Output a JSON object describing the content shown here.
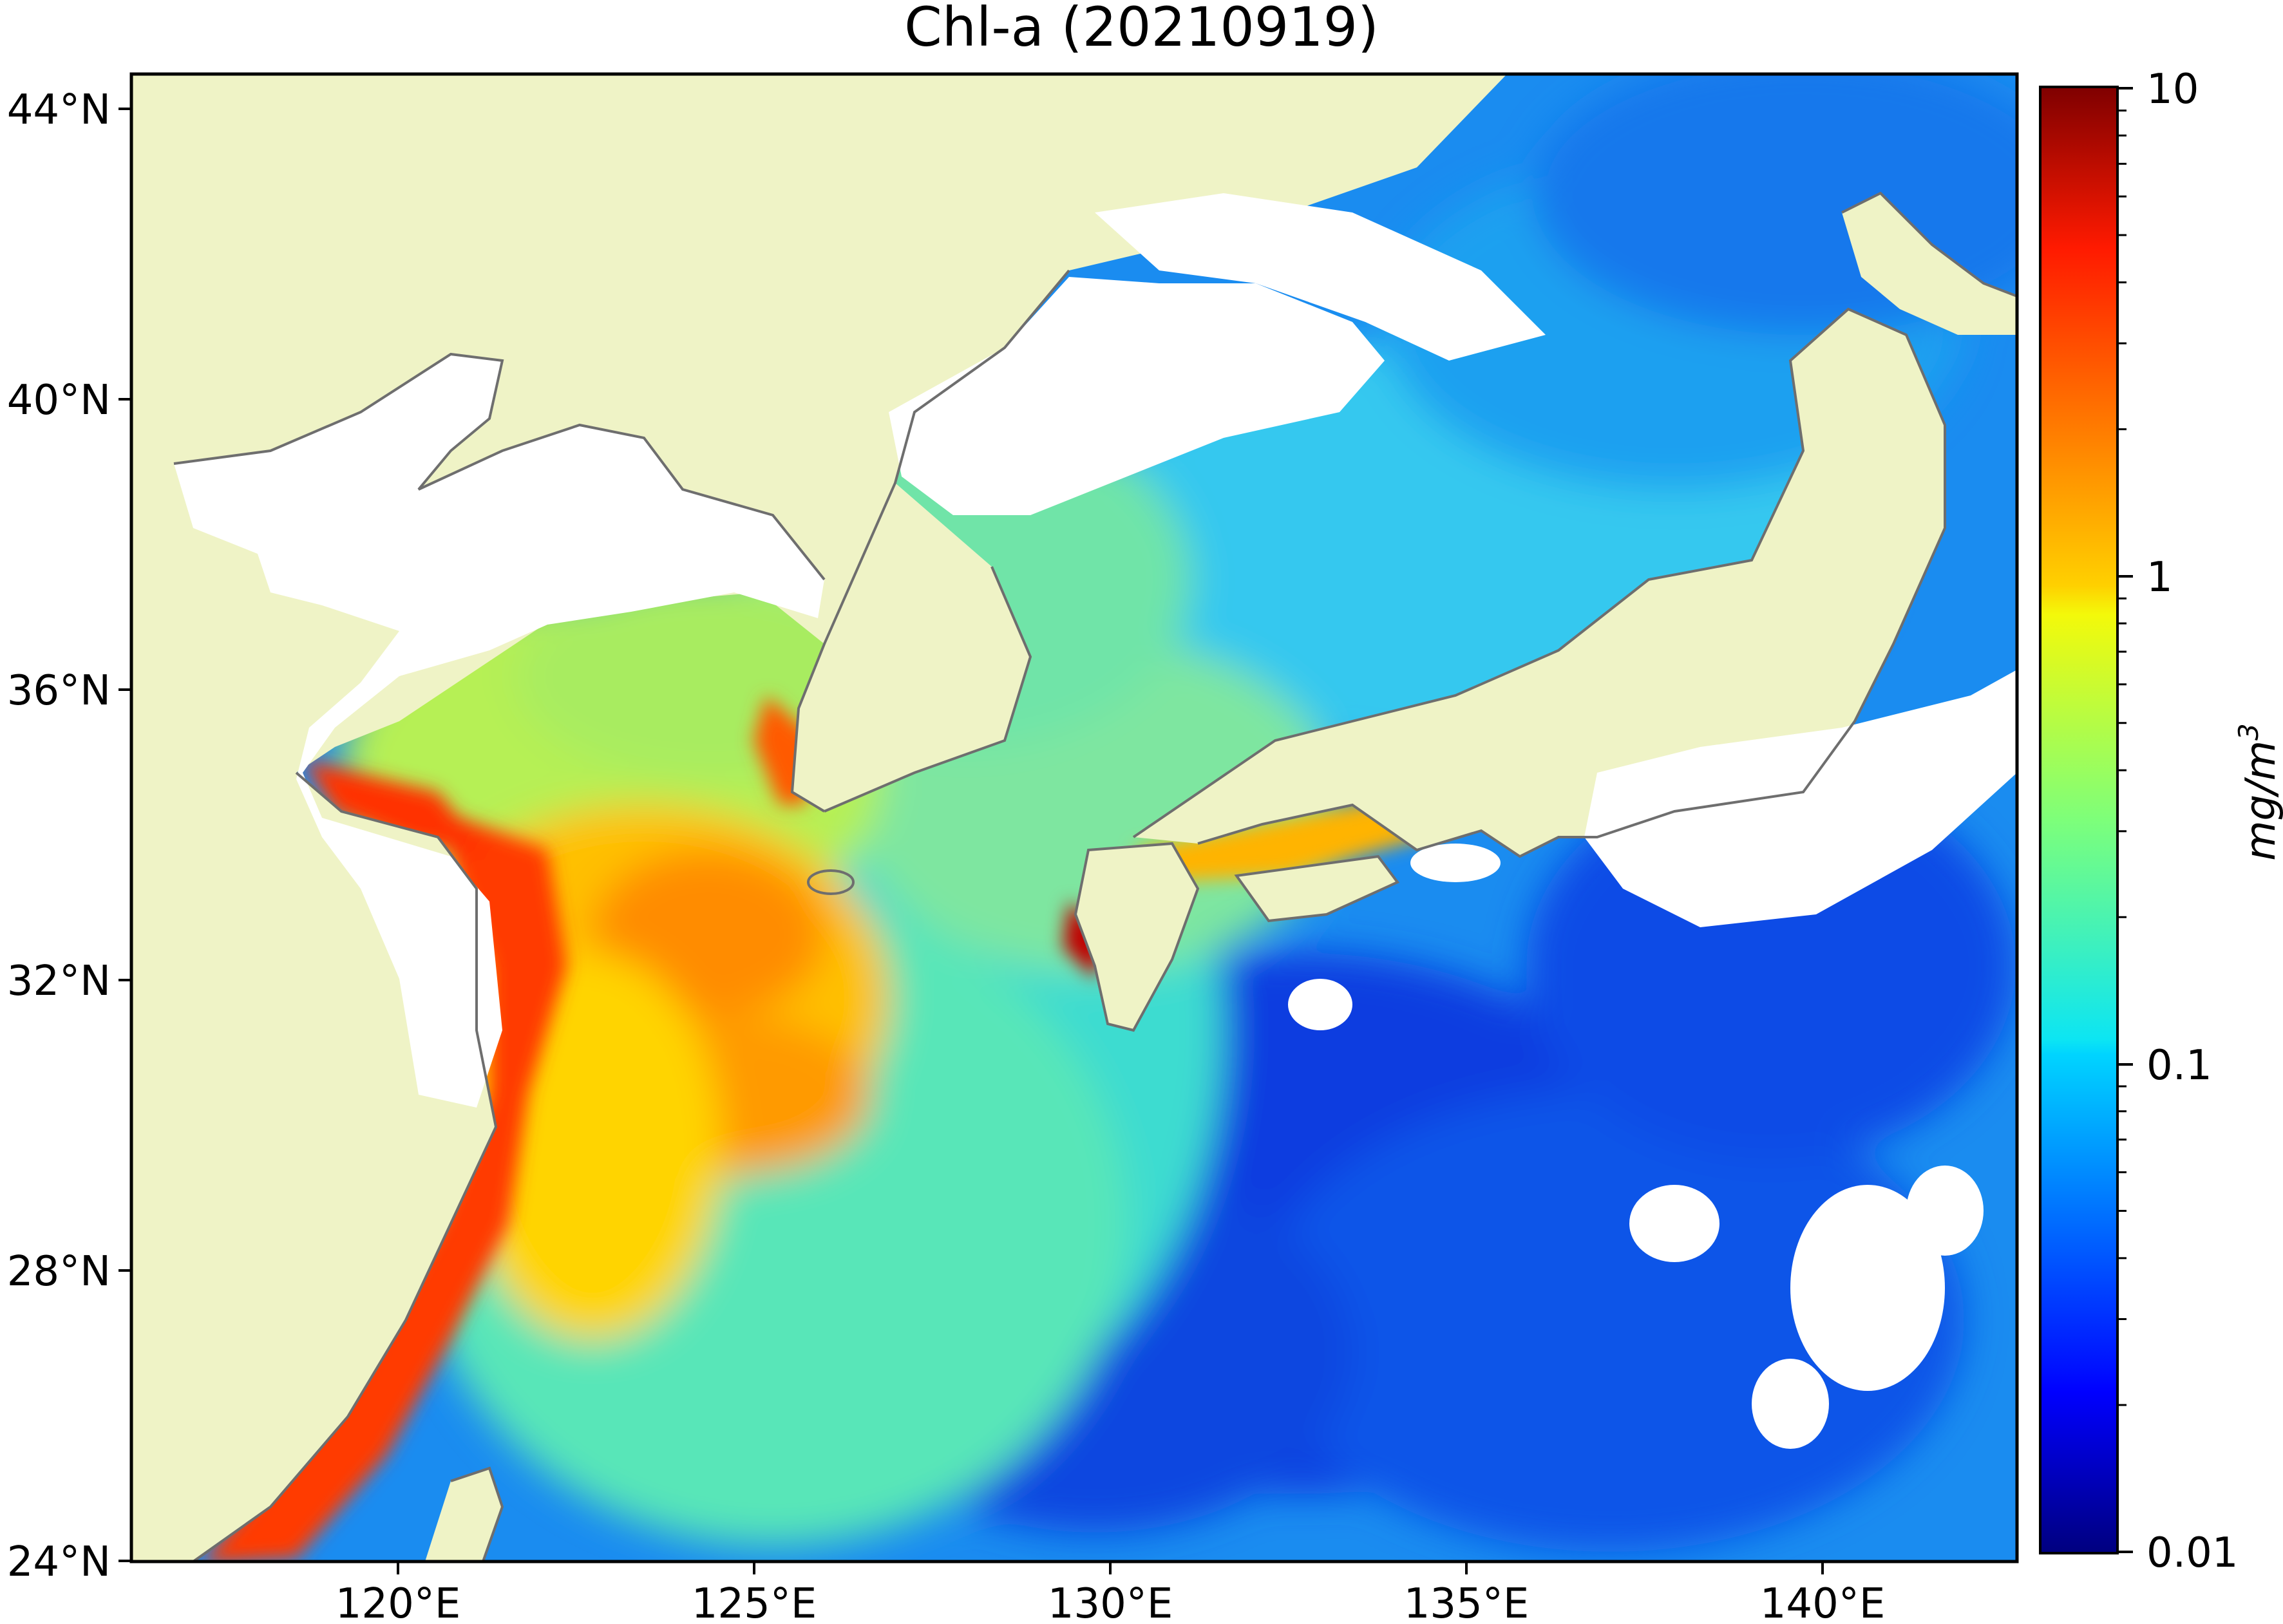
{
  "title": "Chl-a (20210919)",
  "colorbar": {
    "label": "mg/m",
    "label_superscript": "3",
    "scale": "log",
    "range": [
      0.01,
      10
    ],
    "ticks": [
      "10",
      "1",
      "0.1",
      "0.01"
    ],
    "colormap": "jet"
  },
  "axes": {
    "x_ticks": [
      "120°E",
      "125°E",
      "130°E",
      "135°E",
      "140°E"
    ],
    "y_ticks": [
      "44°N",
      "40°N",
      "36°N",
      "32°N",
      "28°N",
      "24°N"
    ],
    "lon_range": [
      116.8,
      143.3
    ],
    "lat_range": [
      24,
      44.5
    ]
  },
  "colors": {
    "land": "#eff3c6",
    "no_data": "#ffffff",
    "coastline": "#6e6e6e"
  }
}
